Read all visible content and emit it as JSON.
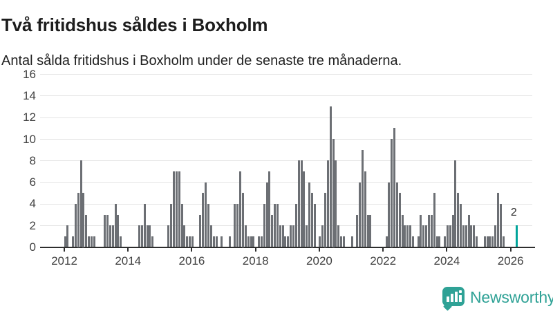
{
  "header": {
    "title": "Två fritidshus såldes i Boxholm",
    "subtitle": "Antal sålda fritidshus i Boxholm under de senaste tre månaderna."
  },
  "footer": {
    "brand": "Newsworthy",
    "logo_icon": "newsworthy-speech-bubble-bar-chart-icon"
  },
  "colors": {
    "bar": "#6c6f74",
    "accent": "#00a49a",
    "grid": "#e4e4e4",
    "axis": "#2e2e2e",
    "title_text": "#1d1d1d",
    "axis_label": "#414141",
    "logo": "#2fa296"
  },
  "chart_data": {
    "type": "bar",
    "title": "Två fritidshus såldes i Boxholm",
    "subtitle": "Antal sålda fritidshus i Boxholm under de senaste tre månaderna.",
    "frequency": "monthly",
    "x_start": "2012-01",
    "x_end": "2026-03",
    "x_tick_labels": [
      "2012",
      "2014",
      "2016",
      "2018",
      "2020",
      "2022",
      "2024",
      "2026"
    ],
    "y_ticks": [
      0,
      2,
      4,
      6,
      8,
      10,
      12,
      14,
      16
    ],
    "ylim": [
      0,
      16
    ],
    "grid": true,
    "highlight_last_bar": true,
    "last_value_label": "2",
    "series_by_year": [
      {
        "year": 2012,
        "monthly": [
          1,
          2,
          0,
          1,
          4,
          5,
          8,
          5,
          3,
          1,
          1,
          1
        ]
      },
      {
        "year": 2013,
        "monthly": [
          0,
          0,
          0,
          3,
          3,
          2,
          2,
          4,
          3,
          1,
          0,
          0
        ]
      },
      {
        "year": 2014,
        "monthly": [
          0,
          0,
          0,
          0,
          2,
          2,
          4,
          2,
          2,
          1,
          0,
          0
        ]
      },
      {
        "year": 2015,
        "monthly": [
          0,
          0,
          0,
          2,
          4,
          7,
          7,
          7,
          4,
          2,
          1,
          1
        ]
      },
      {
        "year": 2016,
        "monthly": [
          1,
          0,
          0,
          3,
          5,
          6,
          4,
          2,
          1,
          1,
          0,
          1
        ]
      },
      {
        "year": 2017,
        "monthly": [
          0,
          0,
          1,
          0,
          4,
          4,
          7,
          5,
          2,
          1,
          1,
          1
        ]
      },
      {
        "year": 2018,
        "monthly": [
          0,
          1,
          1,
          4,
          6,
          7,
          3,
          4,
          4,
          2,
          2,
          1
        ]
      },
      {
        "year": 2019,
        "monthly": [
          1,
          2,
          2,
          4,
          8,
          8,
          7,
          2,
          6,
          5,
          4,
          0
        ]
      },
      {
        "year": 2020,
        "monthly": [
          1,
          2,
          5,
          8,
          13,
          10,
          8,
          2,
          1,
          1,
          0,
          0
        ]
      },
      {
        "year": 2021,
        "monthly": [
          1,
          0,
          3,
          6,
          9,
          7,
          3,
          3,
          0,
          0,
          0,
          0
        ]
      },
      {
        "year": 2022,
        "monthly": [
          0,
          1,
          6,
          10,
          11,
          6,
          5,
          3,
          2,
          2,
          2,
          1
        ]
      },
      {
        "year": 2023,
        "monthly": [
          0,
          1,
          3,
          2,
          2,
          3,
          3,
          5,
          1,
          1,
          0,
          1
        ]
      },
      {
        "year": 2024,
        "monthly": [
          2,
          2,
          3,
          8,
          5,
          4,
          2,
          2,
          3,
          2,
          2,
          1
        ]
      },
      {
        "year": 2025,
        "monthly": [
          0,
          0,
          1,
          1,
          1,
          1,
          2,
          5,
          4,
          1,
          0,
          0
        ]
      },
      {
        "year": 2026,
        "monthly": [
          0,
          0,
          2
        ]
      }
    ]
  }
}
